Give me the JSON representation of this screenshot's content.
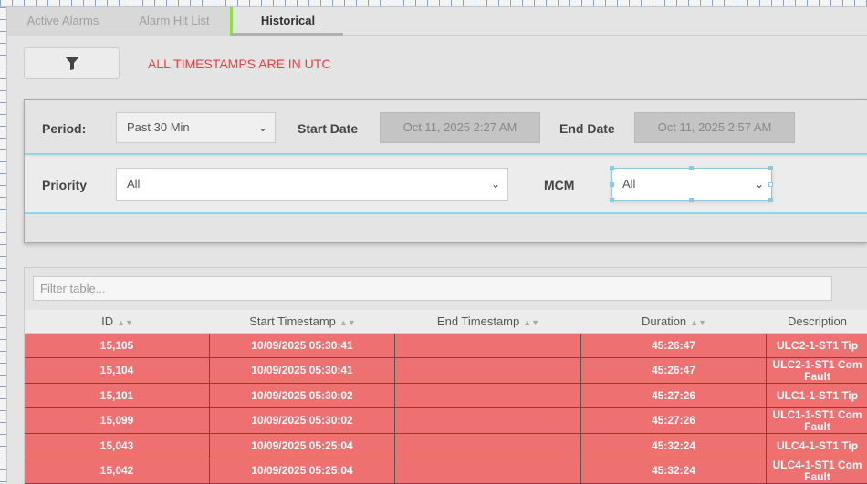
{
  "tabs": [
    {
      "label": "Active Alarms"
    },
    {
      "label": "Alarm Hit List"
    },
    {
      "label": "Historical",
      "active": true
    }
  ],
  "notice": "ALL TIMESTAMPS ARE IN UTC",
  "filters": {
    "period_label": "Period:",
    "period_value": "Past 30 Min",
    "start_label": "Start Date",
    "start_value": "Oct 11, 2025 2:27 AM",
    "end_label": "End Date",
    "end_value": "Oct 11, 2025 2:57 AM",
    "priority_label": "Priority",
    "priority_value": "All",
    "mcm_label": "MCM",
    "mcm_value": "All"
  },
  "table": {
    "filter_placeholder": "Filter table...",
    "columns": [
      "ID",
      "Start Timestamp",
      "End Timestamp",
      "Duration",
      "Description"
    ],
    "rows": [
      {
        "id": "15,105",
        "start": "10/09/2025 05:30:41",
        "end": "",
        "duration": "45:26:47",
        "desc": "ULC2-1-ST1 Tip"
      },
      {
        "id": "15,104",
        "start": "10/09/2025 05:30:41",
        "end": "",
        "duration": "45:26:47",
        "desc": "ULC2-1-ST1 Com Fault"
      },
      {
        "id": "15,101",
        "start": "10/09/2025 05:30:02",
        "end": "",
        "duration": "45:27:26",
        "desc": "ULC1-1-ST1 Tip"
      },
      {
        "id": "15,099",
        "start": "10/09/2025 05:30:02",
        "end": "",
        "duration": "45:27:26",
        "desc": "ULC1-1-ST1 Com Fault"
      },
      {
        "id": "15,043",
        "start": "10/09/2025 05:25:04",
        "end": "",
        "duration": "45:32:24",
        "desc": "ULC4-1-ST1 Tip"
      },
      {
        "id": "15,042",
        "start": "10/09/2025 05:25:04",
        "end": "",
        "duration": "45:32:24",
        "desc": "ULC4-1-ST1 Com Fault"
      }
    ]
  },
  "colors": {
    "row_alarm": "#ee7070",
    "notice": "#f03c3c",
    "active_tab_accent": "#8ee03a",
    "panel_divider": "#8fd3ef"
  }
}
